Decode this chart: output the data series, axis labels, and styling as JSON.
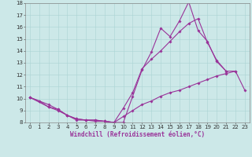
{
  "xlabel": "Windchill (Refroidissement éolien,°C)",
  "background_color": "#cce8e8",
  "line_color": "#993399",
  "ylim": [
    8,
    18
  ],
  "xlim": [
    -0.5,
    23.5
  ],
  "yticks": [
    8,
    9,
    10,
    11,
    12,
    13,
    14,
    15,
    16,
    17,
    18
  ],
  "xticks": [
    0,
    1,
    2,
    3,
    4,
    5,
    6,
    7,
    8,
    9,
    10,
    11,
    12,
    13,
    14,
    15,
    16,
    17,
    18,
    19,
    20,
    21,
    22,
    23
  ],
  "tick_fontsize": 5.0,
  "xlabel_fontsize": 5.5,
  "grid_color": "#aad4d4",
  "markersize": 1.8,
  "linewidth": 0.8,
  "l1_x": [
    0,
    1,
    2,
    3,
    4,
    5,
    6,
    7,
    8,
    9,
    10,
    11,
    12,
    13,
    14,
    15,
    16,
    17,
    18,
    19,
    20,
    21
  ],
  "l1_y": [
    10.1,
    9.8,
    9.5,
    9.1,
    8.6,
    8.3,
    8.2,
    8.1,
    8.1,
    8.0,
    8.0,
    10.2,
    12.4,
    13.9,
    15.9,
    15.2,
    16.5,
    18.1,
    15.7,
    14.8,
    13.1,
    12.3
  ],
  "l2_x": [
    0,
    2,
    3,
    4,
    5,
    6,
    7,
    8,
    9,
    10,
    11,
    12,
    13,
    14,
    15,
    16,
    17,
    18,
    19,
    20,
    21,
    22
  ],
  "l2_y": [
    10.1,
    9.3,
    9.1,
    8.6,
    8.2,
    8.2,
    8.2,
    8.1,
    8.0,
    9.2,
    10.5,
    12.5,
    13.3,
    14.0,
    14.8,
    15.6,
    16.3,
    16.7,
    14.7,
    13.2,
    12.3,
    12.3
  ],
  "l3_x": [
    0,
    1,
    2,
    3,
    4,
    5,
    6,
    7,
    8,
    9,
    10,
    11,
    12,
    13,
    14,
    15,
    16,
    17,
    18,
    19,
    20,
    21,
    22,
    23
  ],
  "l3_y": [
    10.1,
    9.8,
    9.3,
    9.0,
    8.6,
    8.3,
    8.2,
    8.2,
    8.1,
    8.0,
    8.5,
    9.0,
    9.5,
    9.8,
    10.2,
    10.5,
    10.7,
    11.0,
    11.3,
    11.6,
    11.9,
    12.1,
    12.3,
    10.7
  ]
}
